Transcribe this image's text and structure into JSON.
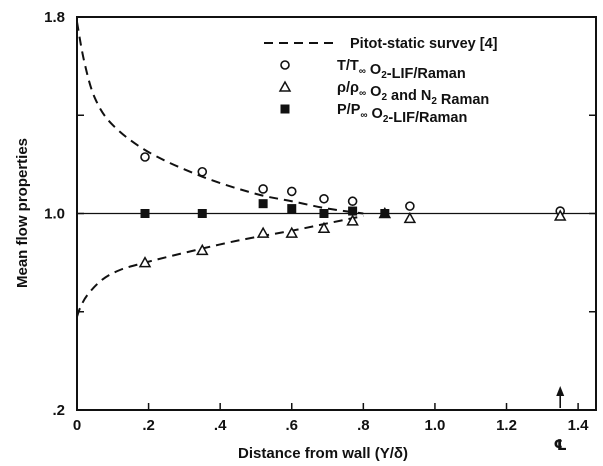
{
  "chart_data": {
    "type": "scatter",
    "xlabel": "Distance from wall (Y/δ)",
    "ylabel": "Mean flow properties",
    "xlim": [
      0,
      1.45
    ],
    "ylim": [
      0.2,
      1.8
    ],
    "x_ticks": [
      {
        "value": 0,
        "label": "0"
      },
      {
        "value": 0.2,
        "label": ".2"
      },
      {
        "value": 0.4,
        "label": ".4"
      },
      {
        "value": 0.6,
        "label": ".6"
      },
      {
        "value": 0.8,
        "label": ".8"
      },
      {
        "value": 1.0,
        "label": "1.0"
      },
      {
        "value": 1.2,
        "label": "1.2"
      },
      {
        "value": 1.4,
        "label": "1.4"
      }
    ],
    "y_ticks": [
      {
        "value": 1.8,
        "label": "1.8"
      },
      {
        "value": 1.0,
        "label": "1.0"
      },
      {
        "value": 0.2,
        "label": ".2"
      }
    ],
    "y_minor_ticks": [
      1.4,
      0.6
    ],
    "reference_line": 1.0,
    "centerline": {
      "x": 1.35,
      "symbol": "℄"
    },
    "legend_position": "top-right",
    "series": [
      {
        "name": "Pitot-static survey [4]",
        "marker": "dashed-line",
        "x": [
          0.0,
          0.02,
          0.05,
          0.1,
          0.2,
          0.35,
          0.5,
          0.6,
          0.7,
          0.8
        ],
        "y": [
          1.78,
          1.62,
          1.47,
          1.36,
          1.25,
          1.15,
          1.08,
          1.05,
          1.02,
          1.0
        ]
      },
      {
        "name": "T/T∞ O2-LIF/Raman",
        "marker": "open-circle",
        "x": [
          0.19,
          0.35,
          0.52,
          0.6,
          0.69,
          0.77,
          0.93,
          1.35
        ],
        "y": [
          1.23,
          1.17,
          1.1,
          1.09,
          1.06,
          1.05,
          1.03,
          1.01
        ]
      },
      {
        "name": "ρ/ρ∞ O2 and N2 Raman",
        "marker": "open-triangle",
        "x": [
          0.19,
          0.35,
          0.52,
          0.6,
          0.69,
          0.77,
          0.86,
          0.93,
          1.35
        ],
        "y": [
          0.8,
          0.85,
          0.92,
          0.92,
          0.94,
          0.97,
          1.0,
          0.98,
          0.99
        ]
      },
      {
        "name": "P/P∞ O2-LIF/Raman",
        "marker": "filled-square",
        "x": [
          0.19,
          0.35,
          0.52,
          0.6,
          0.69,
          0.77,
          0.86
        ],
        "y": [
          1.0,
          1.0,
          1.04,
          1.02,
          1.0,
          1.01,
          1.0
        ]
      },
      {
        "name": "",
        "marker": "dashed-line",
        "x": [
          0.0,
          0.01,
          0.03,
          0.07,
          0.12,
          0.19,
          0.3,
          0.45,
          0.6,
          0.7,
          0.8
        ],
        "y": [
          0.58,
          0.62,
          0.67,
          0.73,
          0.77,
          0.8,
          0.84,
          0.89,
          0.93,
          0.96,
          0.99
        ]
      }
    ]
  }
}
